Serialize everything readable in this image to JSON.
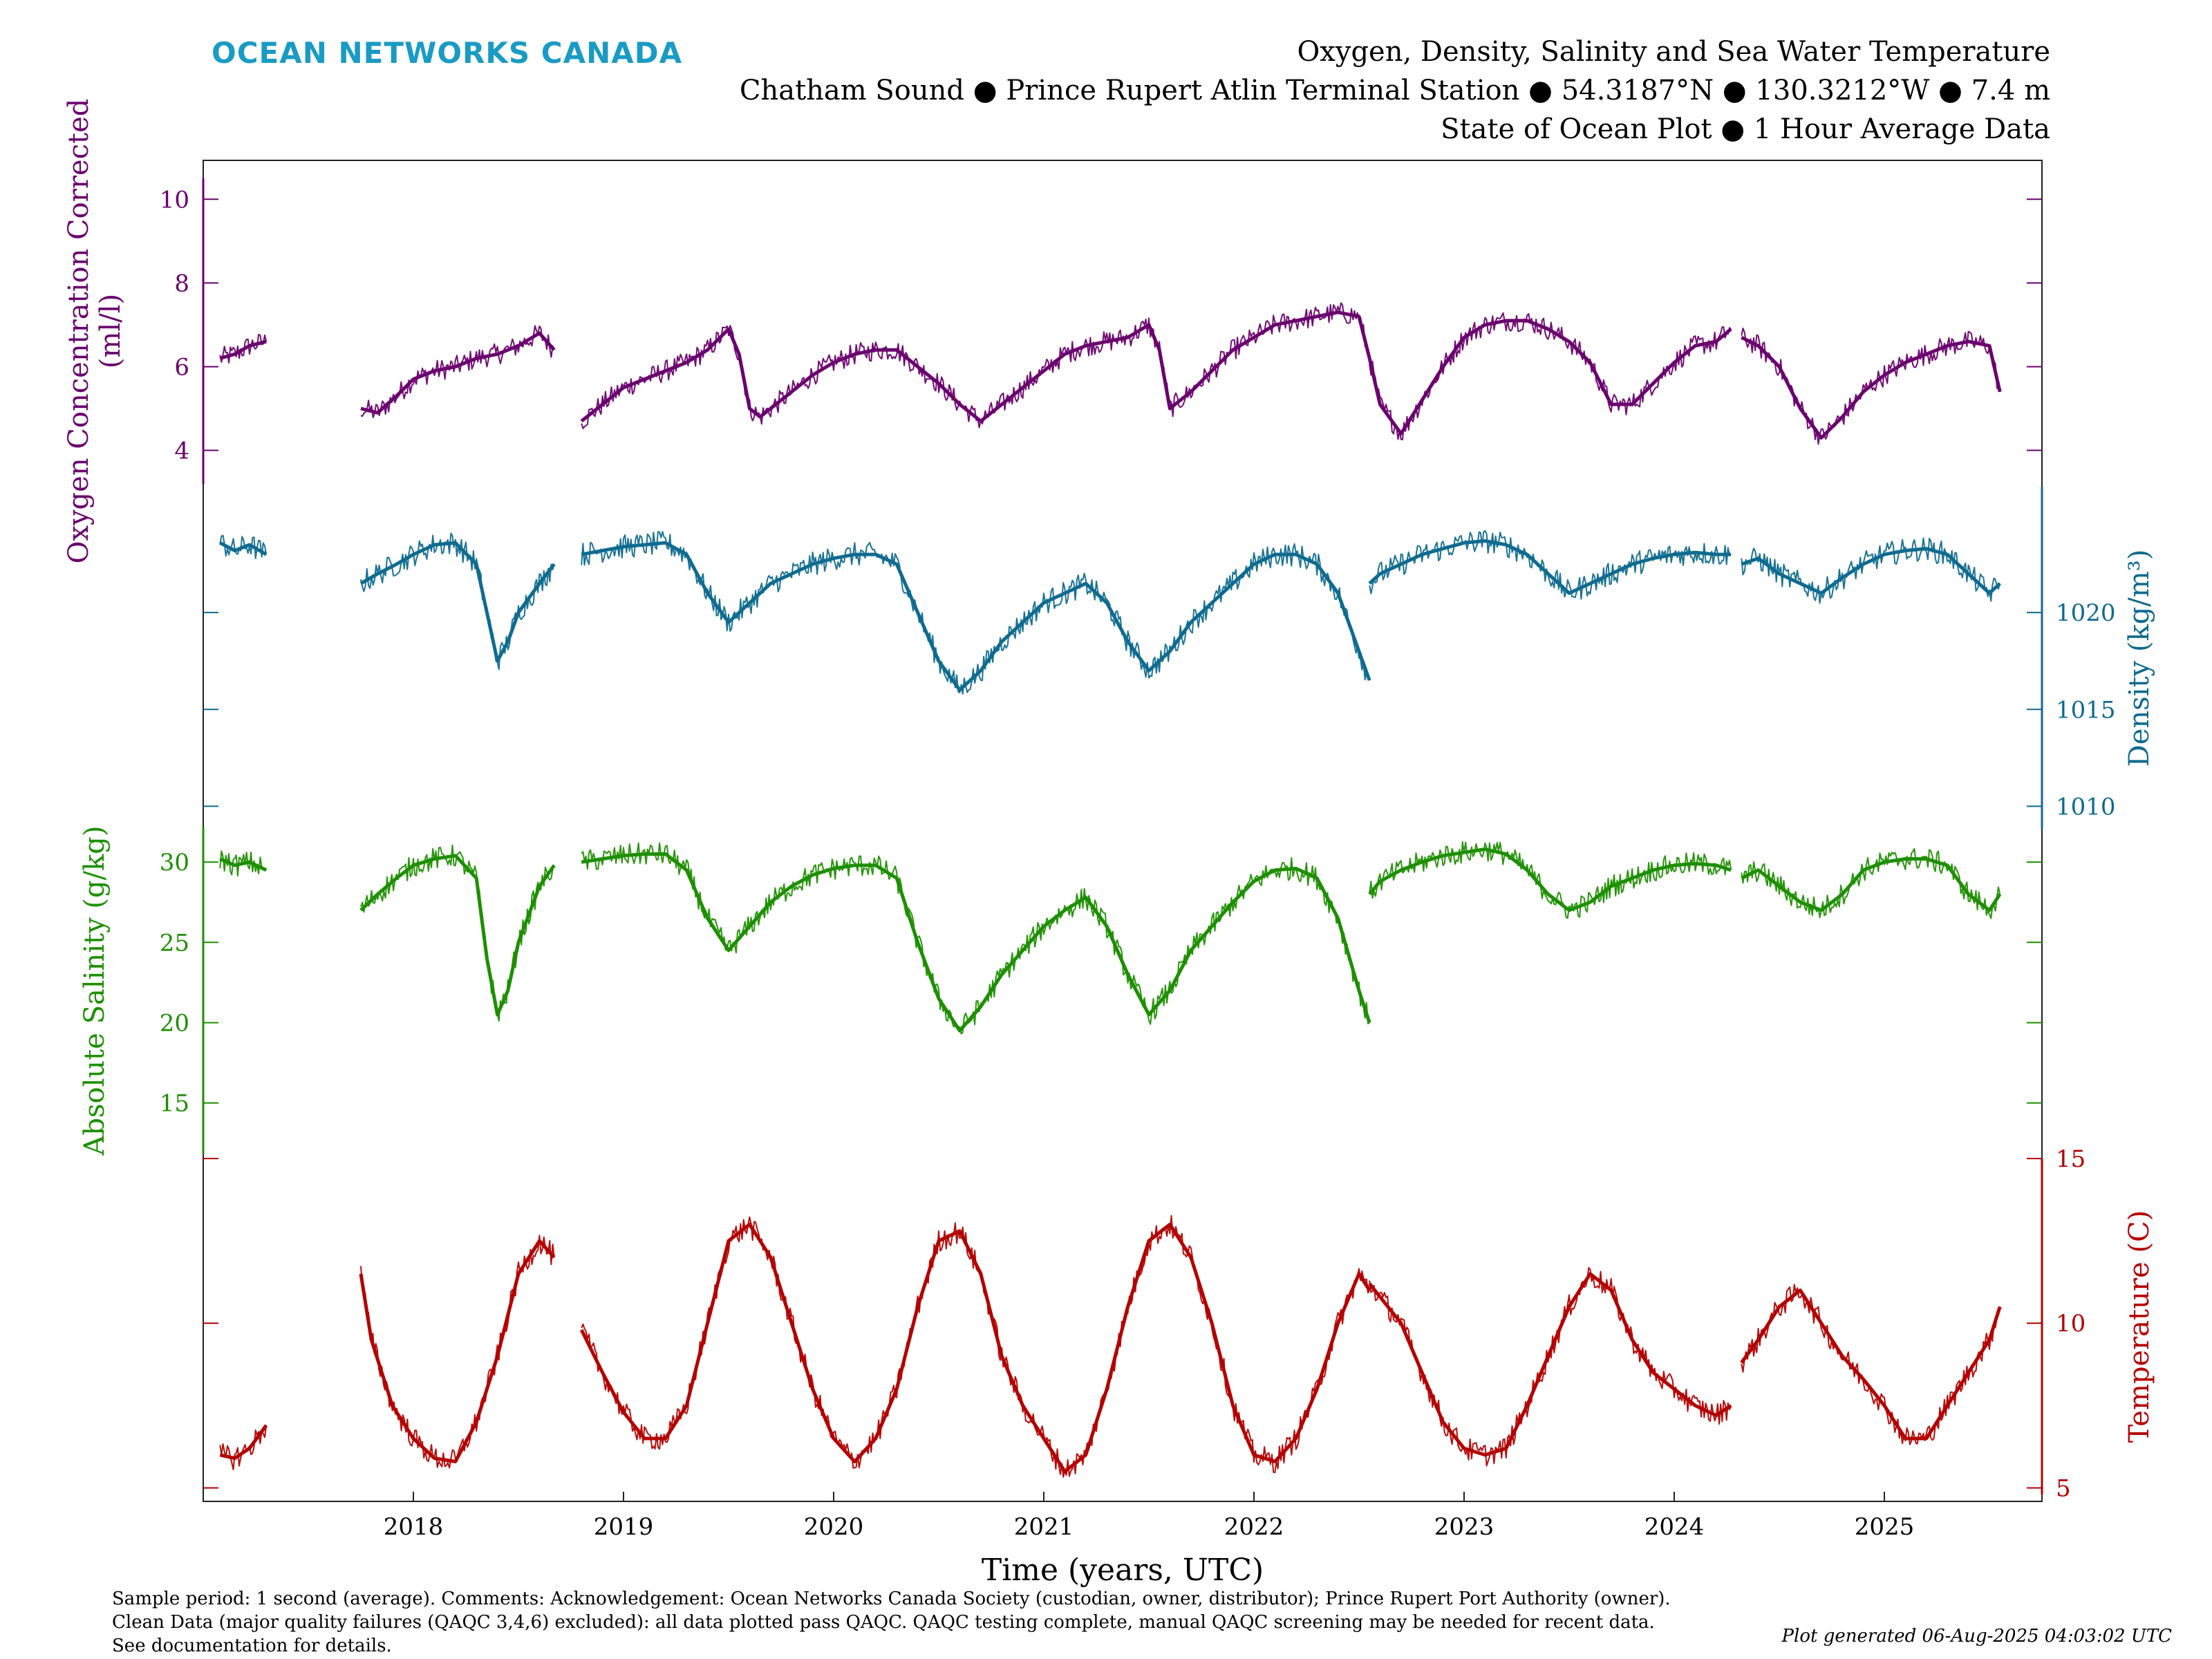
{
  "brand": "OCEAN NETWORKS CANADA",
  "titles": [
    "Oxygen, Density, Salinity and Sea Water Temperature",
    "Chatham Sound ● Prince Rupert Atlin Terminal Station ● 54.3187°N ● 130.3212°W ● 7.4 m",
    "State of Ocean Plot ● 1 Hour Average Data"
  ],
  "footer": [
    "Sample period: 1 second (average). Comments: Acknowledgement: Ocean Networks Canada Society (custodian, owner, distributor); Prince Rupert Port Authority (owner).",
    "Clean Data (major quality failures (QAQC 3,4,6) excluded): all data plotted pass QAQC. QAQC testing complete, manual QAQC screening may be needed for recent data.",
    "See documentation for details."
  ],
  "generated": "Plot generated 06-Aug-2025 04:03:02 UTC",
  "chart_data": {
    "type": "line",
    "xlabel": "Time (years, UTC)",
    "xlim": [
      2017.0,
      2025.75
    ],
    "x_ticks": [
      2018,
      2019,
      2020,
      2021,
      2022,
      2023,
      2024,
      2025
    ],
    "x_tick_labels": [
      "2018",
      "2019",
      "2020",
      "2021",
      "2022",
      "2023",
      "2024",
      "2025"
    ],
    "grid": false,
    "series": [
      {
        "key": "oxygen",
        "ylabel_lines": [
          "Oxygen Concentration Corrected",
          "(ml/l)"
        ],
        "axis_side": "left",
        "color": "#6a006e",
        "ylim": [
          3.2,
          10.5
        ],
        "ticks": [
          4,
          6,
          8,
          10
        ],
        "tick_labels": [
          "4",
          "6",
          "8",
          "10"
        ],
        "segments": [
          {
            "x": [
              2017.08,
              2017.15,
              2017.22,
              2017.3
            ],
            "y": [
              6.2,
              6.3,
              6.5,
              6.6
            ]
          },
          {
            "x": [
              2017.75,
              2017.83,
              2017.92,
              2018.0,
              2018.1,
              2018.2,
              2018.3,
              2018.4,
              2018.5,
              2018.6,
              2018.67
            ],
            "y": [
              5.0,
              4.9,
              5.3,
              5.7,
              5.9,
              6.0,
              6.2,
              6.3,
              6.5,
              6.8,
              6.4
            ]
          },
          {
            "x": [
              2018.8,
              2018.9,
              2019.0,
              2019.1,
              2019.2,
              2019.3,
              2019.4,
              2019.5,
              2019.55,
              2019.6,
              2019.65,
              2019.7,
              2019.8,
              2019.9,
              2020.0,
              2020.1,
              2020.2,
              2020.3,
              2020.4,
              2020.5,
              2020.6,
              2020.7,
              2020.8,
              2020.9,
              2021.0,
              2021.1,
              2021.2,
              2021.3,
              2021.4,
              2021.5,
              2021.55,
              2021.6,
              2021.7,
              2021.8,
              2021.9,
              2022.0,
              2022.1,
              2022.2,
              2022.3,
              2022.4,
              2022.5,
              2022.55
            ],
            "y": [
              4.7,
              5.1,
              5.5,
              5.7,
              5.9,
              6.1,
              6.4,
              6.9,
              6.3,
              5.0,
              4.8,
              5.0,
              5.4,
              5.8,
              6.1,
              6.3,
              6.4,
              6.4,
              6.0,
              5.6,
              5.1,
              4.7,
              5.1,
              5.5,
              5.9,
              6.3,
              6.5,
              6.6,
              6.7,
              7.0,
              6.4,
              5.0,
              5.4,
              5.9,
              6.4,
              6.7,
              7.0,
              7.1,
              7.2,
              7.3,
              7.2,
              6.2
            ]
          },
          {
            "x": [
              2022.55,
              2022.6,
              2022.7,
              2022.8,
              2022.9,
              2023.0,
              2023.1,
              2023.2,
              2023.3,
              2023.4,
              2023.5,
              2023.6,
              2023.7,
              2023.8,
              2023.9,
              2024.0,
              2024.1,
              2024.2,
              2024.27
            ],
            "y": [
              6.2,
              5.1,
              4.4,
              5.2,
              6.0,
              6.7,
              7.0,
              7.1,
              7.1,
              6.9,
              6.6,
              6.1,
              5.1,
              5.1,
              5.6,
              6.1,
              6.5,
              6.6,
              6.9
            ]
          },
          {
            "x": [
              2024.32,
              2024.4,
              2024.5,
              2024.6,
              2024.7,
              2024.8,
              2024.9,
              2025.0,
              2025.1,
              2025.2,
              2025.3,
              2025.4,
              2025.5,
              2025.55
            ],
            "y": [
              6.7,
              6.5,
              6.0,
              5.0,
              4.3,
              4.8,
              5.4,
              5.8,
              6.1,
              6.3,
              6.5,
              6.6,
              6.5,
              5.4
            ]
          }
        ]
      },
      {
        "key": "density",
        "ylabel_lines": [
          "Density (kg/m³)"
        ],
        "axis_side": "right",
        "color": "#0f6b8f",
        "ylim": [
          1008.8,
          1026.5
        ],
        "ticks": [
          1010,
          1015,
          1020
        ],
        "tick_labels": [
          "1010",
          "1015",
          "1020"
        ],
        "segments": [
          {
            "x": [
              2017.08,
              2017.15,
              2017.22,
              2017.3
            ],
            "y": [
              1023.6,
              1023.2,
              1023.5,
              1023.0
            ]
          },
          {
            "x": [
              2017.75,
              2017.83,
              2017.92,
              2018.0,
              2018.1,
              2018.2,
              2018.3,
              2018.35,
              2018.4,
              2018.45,
              2018.5,
              2018.6,
              2018.67
            ],
            "y": [
              1021.5,
              1022.0,
              1022.5,
              1023.0,
              1023.5,
              1023.6,
              1022.5,
              1020.0,
              1017.5,
              1018.5,
              1020.0,
              1021.5,
              1022.5
            ]
          },
          {
            "x": [
              2018.8,
              2018.9,
              2019.0,
              2019.1,
              2019.2,
              2019.3,
              2019.4,
              2019.5,
              2019.6,
              2019.7,
              2019.8,
              2019.9,
              2020.0,
              2020.1,
              2020.2,
              2020.3,
              2020.4,
              2020.5,
              2020.6,
              2020.7,
              2020.8,
              2020.9,
              2021.0,
              2021.1,
              2021.2,
              2021.3,
              2021.4,
              2021.5,
              2021.6,
              2021.7,
              2021.8,
              2021.9,
              2022.0,
              2022.1,
              2022.2,
              2022.3,
              2022.4,
              2022.5,
              2022.55
            ],
            "y": [
              1023.0,
              1023.2,
              1023.4,
              1023.5,
              1023.6,
              1023.0,
              1021.0,
              1019.5,
              1020.5,
              1021.5,
              1022.0,
              1022.5,
              1022.8,
              1023.0,
              1023.0,
              1022.5,
              1020.0,
              1017.5,
              1016.0,
              1017.0,
              1018.5,
              1019.5,
              1020.5,
              1021.0,
              1021.5,
              1020.5,
              1018.5,
              1017.0,
              1018.0,
              1019.5,
              1020.5,
              1021.5,
              1022.5,
              1023.0,
              1023.0,
              1022.5,
              1021.0,
              1018.0,
              1016.5
            ]
          },
          {
            "x": [
              2022.55,
              2022.6,
              2022.7,
              2022.8,
              2022.9,
              2023.0,
              2023.1,
              2023.2,
              2023.3,
              2023.4,
              2023.5,
              2023.6,
              2023.7,
              2023.8,
              2023.9,
              2024.0,
              2024.1,
              2024.2,
              2024.27
            ],
            "y": [
              1021.5,
              1022.0,
              1022.5,
              1023.0,
              1023.3,
              1023.6,
              1023.7,
              1023.5,
              1023.0,
              1022.0,
              1021.0,
              1021.5,
              1022.0,
              1022.5,
              1022.8,
              1023.0,
              1023.1,
              1023.0,
              1023.0
            ]
          },
          {
            "x": [
              2024.32,
              2024.4,
              2024.5,
              2024.6,
              2024.7,
              2024.8,
              2024.9,
              2025.0,
              2025.1,
              2025.2,
              2025.3,
              2025.4,
              2025.5,
              2025.55
            ],
            "y": [
              1022.5,
              1022.8,
              1022.0,
              1021.5,
              1021.0,
              1021.8,
              1022.5,
              1023.0,
              1023.2,
              1023.3,
              1023.0,
              1022.0,
              1021.0,
              1021.5
            ]
          }
        ]
      },
      {
        "key": "salinity",
        "ylabel_lines": [
          "Absolute Salinity (g/kg)"
        ],
        "axis_side": "left",
        "color": "#1d8f00",
        "ylim": [
          11.8,
          32.2
        ],
        "ticks": [
          15,
          20,
          25,
          30
        ],
        "tick_labels": [
          "15",
          "20",
          "25",
          "30"
        ],
        "segments": [
          {
            "x": [
              2017.08,
              2017.15,
              2017.22,
              2017.3
            ],
            "y": [
              30.2,
              29.8,
              30.0,
              29.5
            ]
          },
          {
            "x": [
              2017.75,
              2017.83,
              2017.92,
              2018.0,
              2018.1,
              2018.2,
              2018.3,
              2018.35,
              2018.4,
              2018.45,
              2018.5,
              2018.6,
              2018.67
            ],
            "y": [
              27.0,
              28.0,
              29.0,
              29.8,
              30.2,
              30.4,
              29.0,
              24.0,
              20.5,
              22.0,
              25.0,
              28.5,
              29.8
            ]
          },
          {
            "x": [
              2018.8,
              2018.9,
              2019.0,
              2019.1,
              2019.2,
              2019.3,
              2019.4,
              2019.5,
              2019.6,
              2019.7,
              2019.8,
              2019.9,
              2020.0,
              2020.1,
              2020.2,
              2020.3,
              2020.4,
              2020.5,
              2020.6,
              2020.7,
              2020.8,
              2020.9,
              2021.0,
              2021.1,
              2021.2,
              2021.3,
              2021.4,
              2021.5,
              2021.6,
              2021.7,
              2021.8,
              2021.9,
              2022.0,
              2022.1,
              2022.2,
              2022.3,
              2022.4,
              2022.5,
              2022.55
            ],
            "y": [
              30.0,
              30.2,
              30.4,
              30.5,
              30.5,
              29.5,
              26.5,
              24.5,
              26.0,
              27.5,
              28.5,
              29.2,
              29.6,
              29.8,
              29.8,
              29.0,
              25.0,
              21.5,
              19.5,
              21.0,
              23.0,
              24.5,
              26.0,
              27.0,
              27.8,
              26.0,
              23.0,
              20.5,
              22.0,
              24.5,
              26.0,
              27.5,
              28.8,
              29.5,
              29.6,
              29.0,
              26.5,
              22.0,
              20.0
            ]
          },
          {
            "x": [
              2022.55,
              2022.6,
              2022.7,
              2022.8,
              2022.9,
              2023.0,
              2023.1,
              2023.2,
              2023.3,
              2023.4,
              2023.5,
              2023.6,
              2023.7,
              2023.8,
              2023.9,
              2024.0,
              2024.1,
              2024.2,
              2024.27
            ],
            "y": [
              28.0,
              28.8,
              29.5,
              30.0,
              30.4,
              30.6,
              30.8,
              30.5,
              29.5,
              28.0,
              27.0,
              27.5,
              28.5,
              29.0,
              29.5,
              29.8,
              29.9,
              29.8,
              29.5
            ]
          },
          {
            "x": [
              2024.32,
              2024.4,
              2024.5,
              2024.6,
              2024.7,
              2024.8,
              2024.9,
              2025.0,
              2025.1,
              2025.2,
              2025.3,
              2025.4,
              2025.5,
              2025.55
            ],
            "y": [
              29.0,
              29.5,
              28.5,
              27.5,
              27.0,
              28.0,
              29.5,
              30.0,
              30.2,
              30.2,
              29.8,
              28.0,
              27.0,
              28.0
            ]
          }
        ]
      },
      {
        "key": "temperature",
        "ylabel_lines": [
          "Temperature (C)"
        ],
        "axis_side": "right",
        "color": "#b30000",
        "ylim": [
          4.8,
          15.0
        ],
        "ticks": [
          5,
          10,
          15
        ],
        "tick_labels": [
          "5",
          "10",
          "15"
        ],
        "segments": [
          {
            "x": [
              2017.08,
              2017.15,
              2017.22,
              2017.3
            ],
            "y": [
              6.0,
              5.9,
              6.2,
              6.9
            ]
          },
          {
            "x": [
              2017.75,
              2017.8,
              2017.9,
              2018.0,
              2018.1,
              2018.2,
              2018.3,
              2018.4,
              2018.5,
              2018.6,
              2018.67
            ],
            "y": [
              11.5,
              9.5,
              7.5,
              6.5,
              5.9,
              5.8,
              7.0,
              9.0,
              11.5,
              12.5,
              12.0
            ]
          },
          {
            "x": [
              2018.8,
              2018.9,
              2019.0,
              2019.1,
              2019.2,
              2019.3,
              2019.4,
              2019.5,
              2019.6,
              2019.7,
              2019.8,
              2019.9,
              2020.0,
              2020.1,
              2020.2,
              2020.3,
              2020.4,
              2020.5,
              2020.6,
              2020.7,
              2020.8,
              2020.9,
              2021.0,
              2021.1,
              2021.2,
              2021.3,
              2021.4,
              2021.5,
              2021.6,
              2021.7,
              2021.8,
              2021.9,
              2022.0,
              2022.1,
              2022.2,
              2022.3,
              2022.4,
              2022.5,
              2022.55
            ],
            "y": [
              9.8,
              8.5,
              7.3,
              6.5,
              6.5,
              7.5,
              10.0,
              12.5,
              13.0,
              12.0,
              10.0,
              8.0,
              6.5,
              5.8,
              6.5,
              8.0,
              10.5,
              12.5,
              12.8,
              11.5,
              9.0,
              7.5,
              6.5,
              5.5,
              6.0,
              8.0,
              10.5,
              12.5,
              13.0,
              12.0,
              10.0,
              7.5,
              6.0,
              5.8,
              6.5,
              8.0,
              10.0,
              11.5,
              11.0
            ]
          },
          {
            "x": [
              2022.55,
              2022.6,
              2022.7,
              2022.8,
              2022.9,
              2023.0,
              2023.1,
              2023.2,
              2023.3,
              2023.4,
              2023.5,
              2023.6,
              2023.7,
              2023.8,
              2023.9,
              2024.0,
              2024.1,
              2024.2,
              2024.27
            ],
            "y": [
              11.2,
              10.8,
              10.0,
              8.5,
              7.0,
              6.2,
              6.0,
              6.2,
              7.5,
              9.0,
              10.5,
              11.5,
              11.0,
              9.5,
              8.5,
              8.0,
              7.5,
              7.2,
              7.5
            ]
          },
          {
            "x": [
              2024.32,
              2024.4,
              2024.5,
              2024.6,
              2024.7,
              2024.8,
              2024.9,
              2025.0,
              2025.1,
              2025.2,
              2025.3,
              2025.4,
              2025.5,
              2025.55
            ],
            "y": [
              8.8,
              9.5,
              10.5,
              11.0,
              10.0,
              9.0,
              8.3,
              7.5,
              6.5,
              6.5,
              7.5,
              8.5,
              9.5,
              10.5
            ]
          }
        ]
      }
    ]
  }
}
